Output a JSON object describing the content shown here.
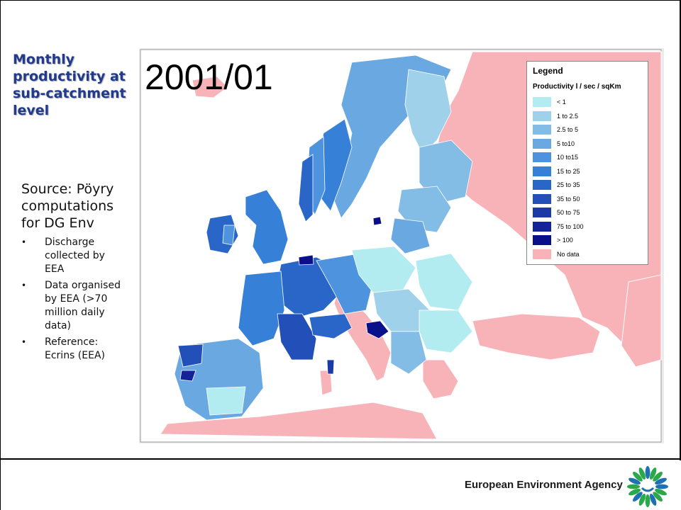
{
  "slide": {
    "title": "Monthly productivity at sub-catchment level",
    "source": "Source: Pöyry computations for DG Env",
    "bullets": [
      "Discharge collected by EEA",
      "Data organised by EEA (>70 million daily data)",
      "Reference: Ecrins (EEA)"
    ]
  },
  "map": {
    "period": "2001/01",
    "legend": {
      "title": "Legend",
      "subtitle": "Productivity l / sec / sqKm",
      "classes": [
        {
          "label": "< 1",
          "color": "#b3ecf0"
        },
        {
          "label": "1 to 2.5",
          "color": "#9fd2ea"
        },
        {
          "label": "2.5 to 5",
          "color": "#83bde6"
        },
        {
          "label": "5 to10",
          "color": "#6aa8e2"
        },
        {
          "label": "10 to15",
          "color": "#4e93dd"
        },
        {
          "label": "15 to 25",
          "color": "#3680d8"
        },
        {
          "label": "25 to 35",
          "color": "#2a65c8"
        },
        {
          "label": "35 to 50",
          "color": "#2250b8"
        },
        {
          "label": "50 to 75",
          "color": "#1c3aa6"
        },
        {
          "label": "75 to 100",
          "color": "#13249a"
        },
        {
          "label": "> 100",
          "color": "#0a0f8a"
        },
        {
          "label": "No data",
          "color": "#f7b3b8"
        }
      ]
    }
  },
  "footer": {
    "agency": "European Environment Agency",
    "logo_icon": "eea-logo-icon",
    "logo_colors": [
      "#2aa84a",
      "#1f6fb5"
    ]
  }
}
